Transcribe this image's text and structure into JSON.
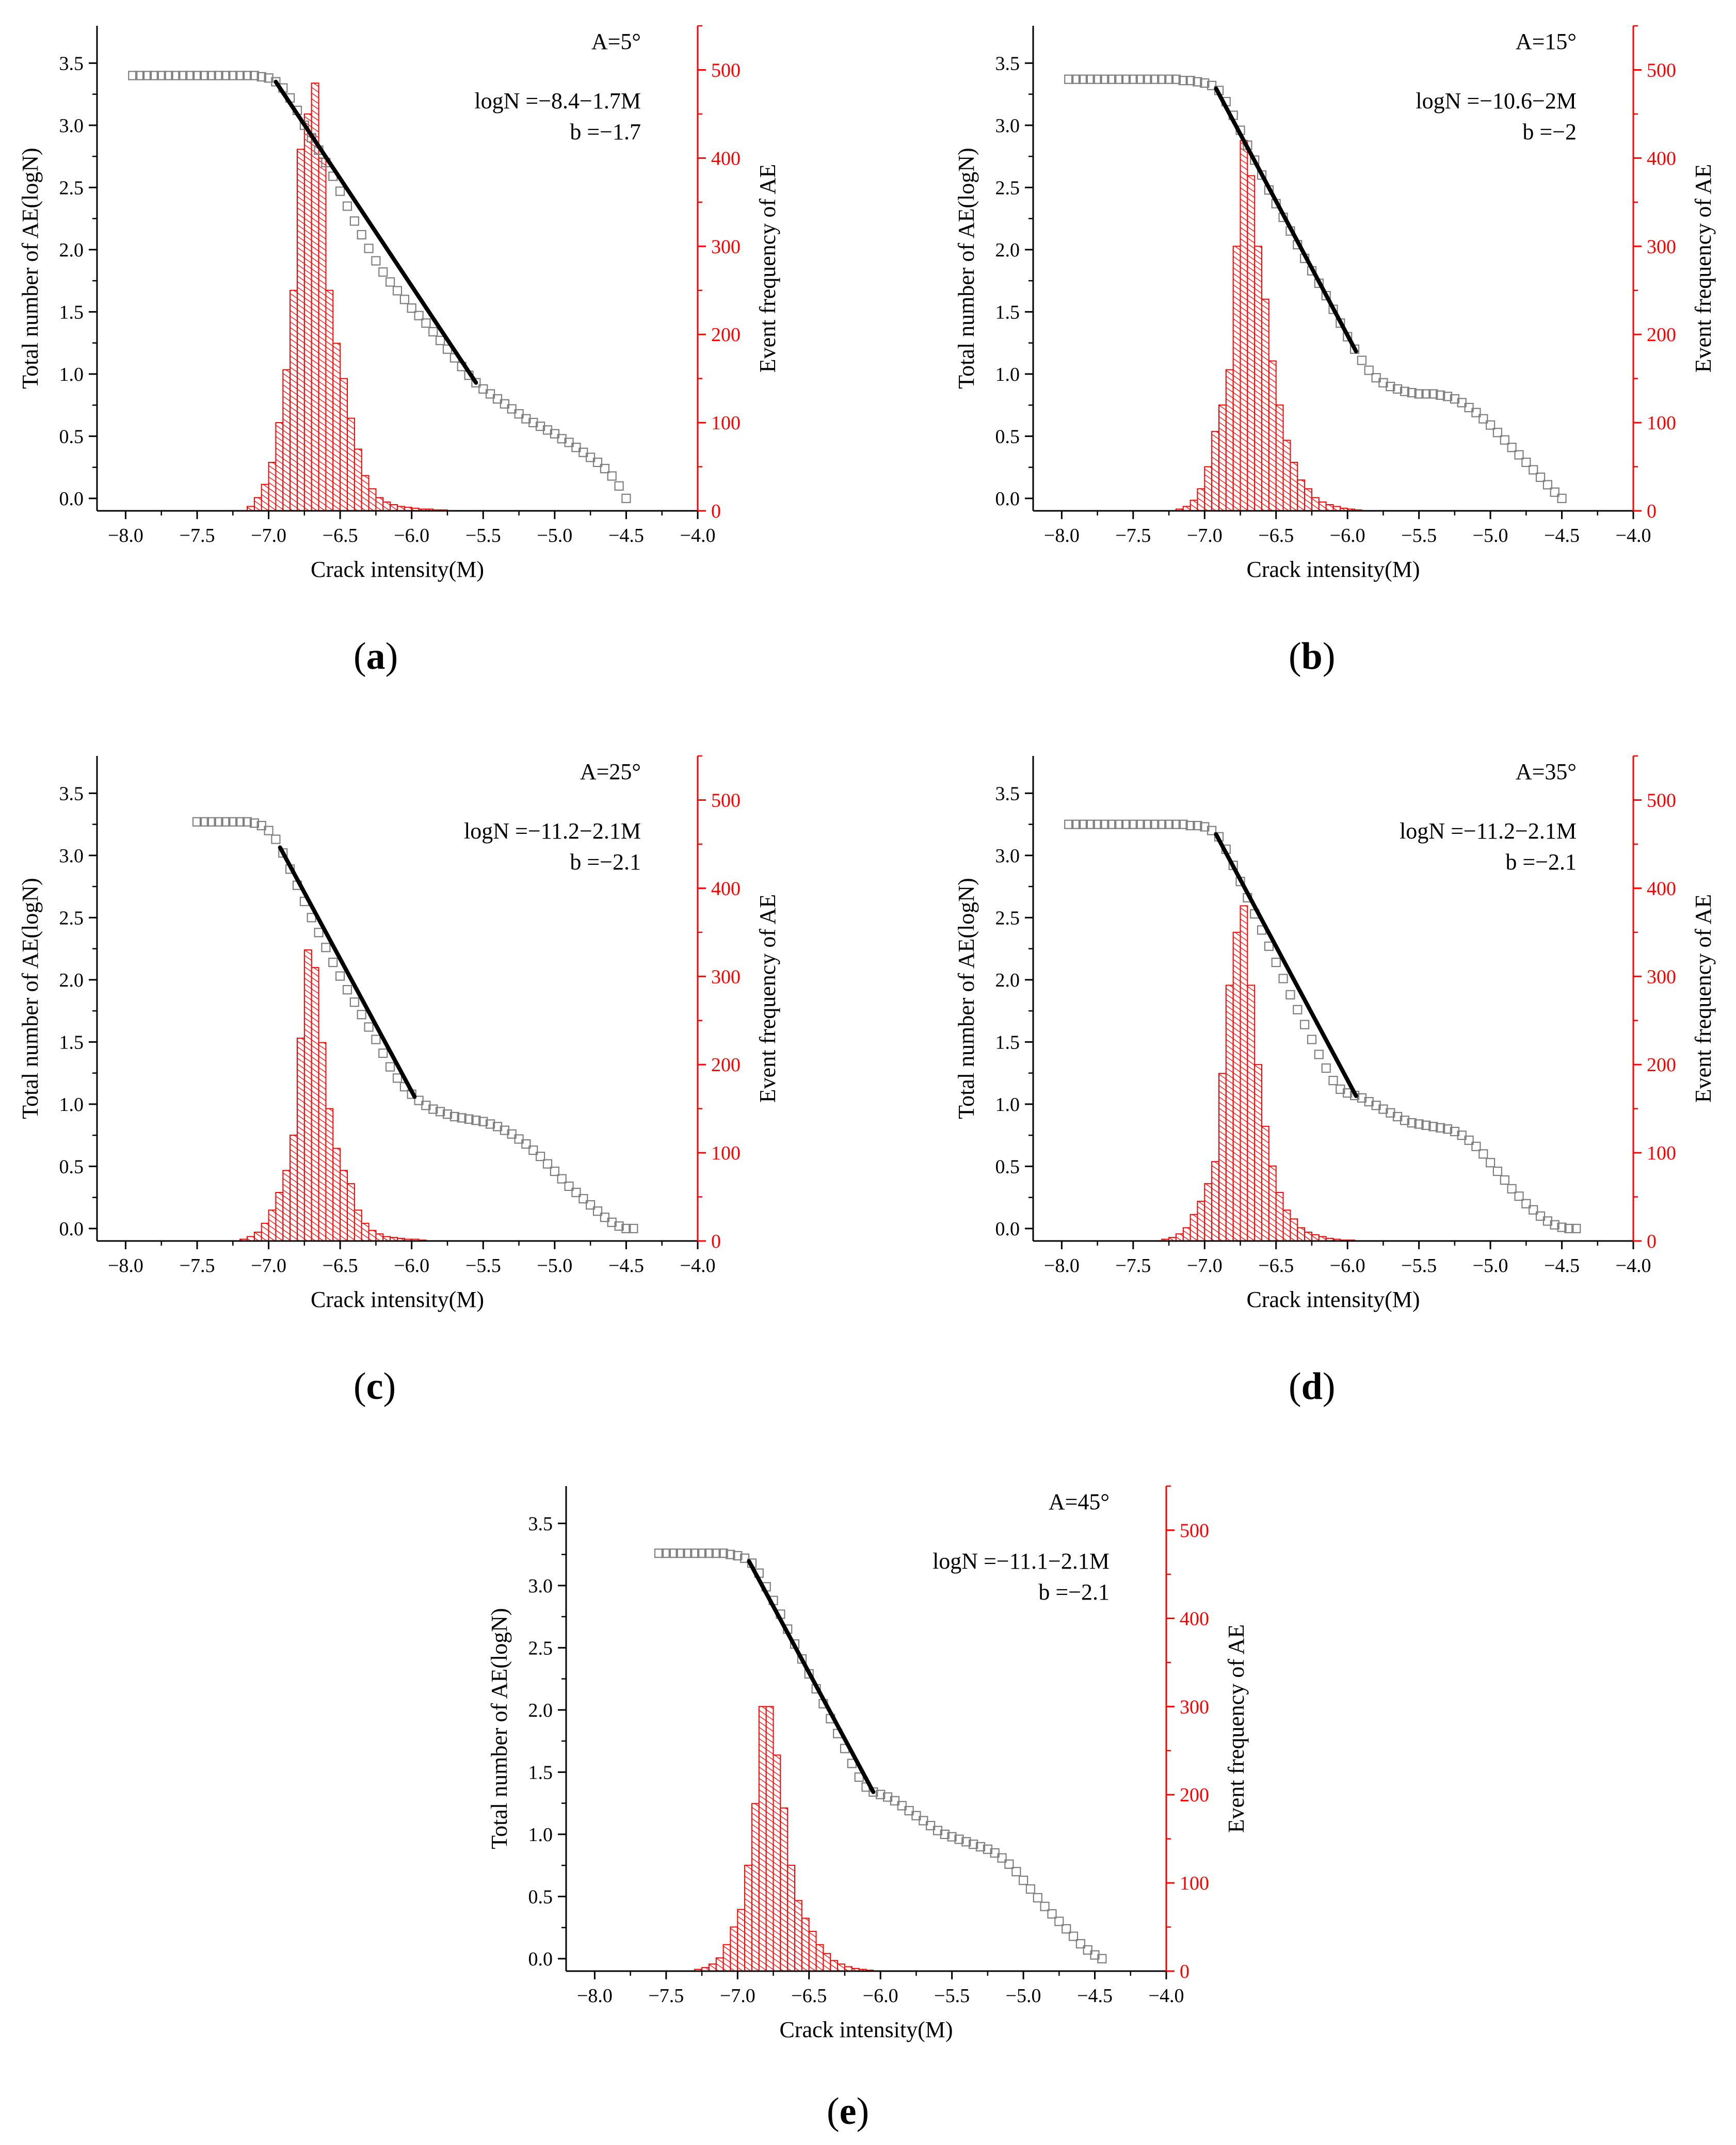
{
  "figure": {
    "panel_labels": [
      "a",
      "b",
      "c",
      "d",
      "e"
    ]
  },
  "colors": {
    "axis": "#000000",
    "right_axis": "#ff0000",
    "histogram": "#ff0000",
    "scatter": "#7f7f7f",
    "fit_line": "#000000"
  },
  "chart_data": [
    {
      "id": "a",
      "type": "combo-bar-scatter",
      "angle_label": "A=5°",
      "equation": "logN =−8.4−1.7M",
      "b_value": "b =−1.7",
      "xlabel": "Crack intensity(M)",
      "ylabel_left": "Total number of AE(logN)",
      "ylabel_right": "Event frequency of AE",
      "xlim": [
        -8.2,
        -4.0
      ],
      "ylim_left": [
        -0.1,
        3.8
      ],
      "ylim_right": [
        0,
        550
      ],
      "xticks": [
        "-8.0",
        "-7.5",
        "-7.0",
        "-6.5",
        "-6.0",
        "-5.5",
        "-5.0",
        "-4.5",
        "-4.0"
      ],
      "yticks_left": [
        "0.0",
        "0.5",
        "1.0",
        "1.5",
        "2.0",
        "2.5",
        "3.0",
        "3.5"
      ],
      "yticks_right": [
        "0",
        "100",
        "200",
        "300",
        "400",
        "500"
      ],
      "histogram": {
        "bin_width": 0.05,
        "bin_start": -7.15,
        "counts": [
          5,
          15,
          30,
          55,
          100,
          160,
          250,
          410,
          450,
          485,
          400,
          250,
          190,
          150,
          105,
          70,
          40,
          25,
          15,
          10,
          7,
          5,
          4,
          3,
          2,
          2,
          1,
          1
        ]
      },
      "scatter": {
        "x": [
          -7.95,
          -7.9,
          -7.85,
          -7.8,
          -7.75,
          -7.7,
          -7.65,
          -7.6,
          -7.55,
          -7.5,
          -7.45,
          -7.4,
          -7.35,
          -7.3,
          -7.25,
          -7.2,
          -7.15,
          -7.1,
          -7.05,
          -7.0,
          -6.95,
          -6.9,
          -6.85,
          -6.8,
          -6.75,
          -6.7,
          -6.65,
          -6.6,
          -6.55,
          -6.5,
          -6.45,
          -6.4,
          -6.35,
          -6.3,
          -6.25,
          -6.2,
          -6.15,
          -6.1,
          -6.05,
          -6.0,
          -5.95,
          -5.9,
          -5.85,
          -5.8,
          -5.75,
          -5.7,
          -5.65,
          -5.6,
          -5.55,
          -5.5,
          -5.45,
          -5.4,
          -5.35,
          -5.3,
          -5.25,
          -5.2,
          -5.15,
          -5.1,
          -5.05,
          -5.0,
          -4.95,
          -4.9,
          -4.85,
          -4.8,
          -4.75,
          -4.7,
          -4.65,
          -4.6,
          -4.55,
          -4.5
        ],
        "y": [
          3.4,
          3.4,
          3.4,
          3.4,
          3.4,
          3.4,
          3.4,
          3.4,
          3.4,
          3.4,
          3.4,
          3.4,
          3.4,
          3.4,
          3.4,
          3.4,
          3.4,
          3.4,
          3.39,
          3.38,
          3.35,
          3.3,
          3.22,
          3.12,
          3.0,
          2.9,
          2.8,
          2.7,
          2.59,
          2.47,
          2.35,
          2.23,
          2.12,
          2.01,
          1.91,
          1.82,
          1.74,
          1.67,
          1.6,
          1.53,
          1.47,
          1.41,
          1.34,
          1.27,
          1.2,
          1.13,
          1.06,
          0.99,
          0.93,
          0.88,
          0.84,
          0.8,
          0.76,
          0.72,
          0.68,
          0.64,
          0.61,
          0.58,
          0.55,
          0.52,
          0.48,
          0.45,
          0.41,
          0.37,
          0.33,
          0.29,
          0.24,
          0.18,
          0.1,
          0.0
        ]
      },
      "fit_line": {
        "x": [
          -6.95,
          -5.55
        ]
      }
    },
    {
      "id": "b",
      "type": "combo-bar-scatter",
      "angle_label": "A=15°",
      "equation": "logN =−10.6−2M",
      "b_value": "b =−2",
      "xlabel": "Crack intensity(M)",
      "ylabel_left": "Total number of AE(logN)",
      "ylabel_right": "Event frequency of AE",
      "xlim": [
        -8.2,
        -4.0
      ],
      "ylim_left": [
        -0.1,
        3.8
      ],
      "ylim_right": [
        0,
        550
      ],
      "xticks": [
        "-8.0",
        "-7.5",
        "-7.0",
        "-6.5",
        "-6.0",
        "-5.5",
        "-5.0",
        "-4.5",
        "-4.0"
      ],
      "yticks_left": [
        "0.0",
        "0.5",
        "1.0",
        "1.5",
        "2.0",
        "2.5",
        "3.0",
        "3.5"
      ],
      "yticks_right": [
        "0",
        "100",
        "200",
        "300",
        "400",
        "500"
      ],
      "histogram": {
        "bin_width": 0.05,
        "bin_start": -7.2,
        "counts": [
          2,
          5,
          12,
          25,
          50,
          90,
          120,
          160,
          300,
          420,
          380,
          300,
          240,
          170,
          120,
          80,
          55,
          35,
          25,
          15,
          10,
          7,
          5,
          3,
          2,
          1
        ]
      },
      "scatter": {
        "x": [
          -7.95,
          -7.9,
          -7.85,
          -7.8,
          -7.75,
          -7.7,
          -7.65,
          -7.6,
          -7.55,
          -7.5,
          -7.45,
          -7.4,
          -7.35,
          -7.3,
          -7.25,
          -7.2,
          -7.15,
          -7.1,
          -7.05,
          -7.0,
          -6.95,
          -6.9,
          -6.85,
          -6.8,
          -6.75,
          -6.7,
          -6.65,
          -6.6,
          -6.55,
          -6.5,
          -6.45,
          -6.4,
          -6.35,
          -6.3,
          -6.25,
          -6.2,
          -6.15,
          -6.1,
          -6.05,
          -6.0,
          -5.95,
          -5.9,
          -5.85,
          -5.8,
          -5.75,
          -5.7,
          -5.65,
          -5.6,
          -5.55,
          -5.5,
          -5.45,
          -5.4,
          -5.35,
          -5.3,
          -5.25,
          -5.2,
          -5.15,
          -5.1,
          -5.05,
          -5.0,
          -4.95,
          -4.9,
          -4.85,
          -4.8,
          -4.75,
          -4.7,
          -4.65,
          -4.6,
          -4.55,
          -4.5
        ],
        "y": [
          3.37,
          3.37,
          3.37,
          3.37,
          3.37,
          3.37,
          3.37,
          3.37,
          3.37,
          3.37,
          3.37,
          3.37,
          3.37,
          3.37,
          3.37,
          3.37,
          3.36,
          3.36,
          3.35,
          3.34,
          3.32,
          3.28,
          3.19,
          3.08,
          2.96,
          2.84,
          2.72,
          2.6,
          2.48,
          2.37,
          2.26,
          2.15,
          2.04,
          1.93,
          1.83,
          1.73,
          1.63,
          1.52,
          1.41,
          1.3,
          1.2,
          1.11,
          1.03,
          0.97,
          0.93,
          0.9,
          0.88,
          0.86,
          0.85,
          0.84,
          0.84,
          0.84,
          0.83,
          0.82,
          0.8,
          0.77,
          0.73,
          0.69,
          0.64,
          0.59,
          0.53,
          0.47,
          0.41,
          0.35,
          0.29,
          0.23,
          0.17,
          0.11,
          0.05,
          0.0
        ]
      },
      "fit_line": {
        "x": [
          -6.92,
          -5.94
        ]
      }
    },
    {
      "id": "c",
      "type": "combo-bar-scatter",
      "angle_label": "A=25°",
      "equation": "logN =−11.2−2.1M",
      "b_value": "b =−2.1",
      "xlabel": "Crack intensity(M)",
      "ylabel_left": "Total number of AE(logN)",
      "ylabel_right": "Event frequency of AE",
      "xlim": [
        -8.2,
        -4.0
      ],
      "ylim_left": [
        -0.1,
        3.8
      ],
      "ylim_right": [
        0,
        550
      ],
      "xticks": [
        "-8.0",
        "-7.5",
        "-7.0",
        "-6.5",
        "-6.0",
        "-5.5",
        "-5.0",
        "-4.5",
        "-4.0"
      ],
      "yticks_left": [
        "0.0",
        "0.5",
        "1.0",
        "1.5",
        "2.0",
        "2.5",
        "3.0",
        "3.5"
      ],
      "yticks_right": [
        "0",
        "100",
        "200",
        "300",
        "400",
        "500"
      ],
      "histogram": {
        "bin_width": 0.05,
        "bin_start": -7.2,
        "counts": [
          2,
          5,
          10,
          20,
          35,
          55,
          80,
          120,
          230,
          330,
          310,
          225,
          150,
          105,
          80,
          65,
          35,
          20,
          12,
          8,
          5,
          4,
          3,
          2,
          2,
          1
        ]
      },
      "scatter": {
        "x": [
          -7.5,
          -7.45,
          -7.4,
          -7.35,
          -7.3,
          -7.25,
          -7.2,
          -7.15,
          -7.1,
          -7.05,
          -7.0,
          -6.95,
          -6.9,
          -6.85,
          -6.8,
          -6.75,
          -6.7,
          -6.65,
          -6.6,
          -6.55,
          -6.5,
          -6.45,
          -6.4,
          -6.35,
          -6.3,
          -6.25,
          -6.2,
          -6.15,
          -6.1,
          -6.05,
          -6.0,
          -5.95,
          -5.9,
          -5.85,
          -5.8,
          -5.75,
          -5.7,
          -5.65,
          -5.6,
          -5.55,
          -5.5,
          -5.45,
          -5.4,
          -5.35,
          -5.3,
          -5.25,
          -5.2,
          -5.15,
          -5.1,
          -5.05,
          -5.0,
          -4.95,
          -4.9,
          -4.85,
          -4.8,
          -4.75,
          -4.7,
          -4.65,
          -4.6,
          -4.55,
          -4.5,
          -4.45
        ],
        "y": [
          3.27,
          3.27,
          3.27,
          3.27,
          3.27,
          3.27,
          3.27,
          3.27,
          3.26,
          3.24,
          3.2,
          3.13,
          3.02,
          2.89,
          2.76,
          2.63,
          2.5,
          2.38,
          2.26,
          2.14,
          2.03,
          1.92,
          1.82,
          1.72,
          1.62,
          1.52,
          1.41,
          1.3,
          1.21,
          1.14,
          1.08,
          1.03,
          0.99,
          0.96,
          0.94,
          0.92,
          0.9,
          0.89,
          0.88,
          0.87,
          0.86,
          0.84,
          0.82,
          0.79,
          0.76,
          0.72,
          0.68,
          0.63,
          0.58,
          0.52,
          0.46,
          0.4,
          0.34,
          0.29,
          0.24,
          0.19,
          0.14,
          0.09,
          0.05,
          0.02,
          0.0,
          0.0
        ]
      },
      "fit_line": {
        "x": [
          -6.92,
          -5.98
        ]
      }
    },
    {
      "id": "d",
      "type": "combo-bar-scatter",
      "angle_label": "A=35°",
      "equation": "logN =−11.2−2.1M",
      "b_value": "b =−2.1",
      "xlabel": "Crack intensity(M)",
      "ylabel_left": "Total number of AE(logN)",
      "ylabel_right": "Event frequency of AE",
      "xlim": [
        -8.2,
        -4.0
      ],
      "ylim_left": [
        -0.1,
        3.8
      ],
      "ylim_right": [
        0,
        550
      ],
      "xticks": [
        "-8.0",
        "-7.5",
        "-7.0",
        "-6.5",
        "-6.0",
        "-5.5",
        "-5.0",
        "-4.5",
        "-4.0"
      ],
      "yticks_left": [
        "0.0",
        "0.5",
        "1.0",
        "1.5",
        "2.0",
        "2.5",
        "3.0",
        "3.5"
      ],
      "yticks_right": [
        "0",
        "100",
        "200",
        "300",
        "400",
        "500"
      ],
      "histogram": {
        "bin_width": 0.05,
        "bin_start": -7.3,
        "counts": [
          2,
          4,
          8,
          15,
          30,
          45,
          65,
          90,
          190,
          290,
          350,
          380,
          290,
          200,
          130,
          85,
          55,
          35,
          25,
          15,
          10,
          7,
          5,
          3,
          2,
          1,
          1
        ]
      },
      "scatter": {
        "x": [
          -7.95,
          -7.9,
          -7.85,
          -7.8,
          -7.75,
          -7.7,
          -7.65,
          -7.6,
          -7.55,
          -7.5,
          -7.45,
          -7.4,
          -7.35,
          -7.3,
          -7.25,
          -7.2,
          -7.15,
          -7.1,
          -7.05,
          -7.0,
          -6.95,
          -6.9,
          -6.85,
          -6.8,
          -6.75,
          -6.7,
          -6.65,
          -6.6,
          -6.55,
          -6.5,
          -6.45,
          -6.4,
          -6.35,
          -6.3,
          -6.25,
          -6.2,
          -6.15,
          -6.1,
          -6.05,
          -6.0,
          -5.95,
          -5.9,
          -5.85,
          -5.8,
          -5.75,
          -5.7,
          -5.65,
          -5.6,
          -5.55,
          -5.5,
          -5.45,
          -5.4,
          -5.35,
          -5.3,
          -5.25,
          -5.2,
          -5.15,
          -5.1,
          -5.05,
          -5.0,
          -4.95,
          -4.9,
          -4.85,
          -4.8,
          -4.75,
          -4.7,
          -4.65,
          -4.6,
          -4.55,
          -4.5,
          -4.45,
          -4.4
        ],
        "y": [
          3.25,
          3.25,
          3.25,
          3.25,
          3.25,
          3.25,
          3.25,
          3.25,
          3.25,
          3.25,
          3.25,
          3.25,
          3.25,
          3.25,
          3.25,
          3.25,
          3.25,
          3.24,
          3.24,
          3.23,
          3.2,
          3.15,
          3.05,
          2.92,
          2.79,
          2.66,
          2.53,
          2.4,
          2.27,
          2.14,
          2.01,
          1.88,
          1.76,
          1.64,
          1.52,
          1.4,
          1.29,
          1.19,
          1.12,
          1.09,
          1.07,
          1.05,
          1.02,
          0.99,
          0.96,
          0.93,
          0.9,
          0.87,
          0.85,
          0.84,
          0.83,
          0.82,
          0.81,
          0.8,
          0.78,
          0.75,
          0.71,
          0.66,
          0.6,
          0.53,
          0.46,
          0.39,
          0.32,
          0.26,
          0.2,
          0.15,
          0.1,
          0.06,
          0.03,
          0.01,
          0.0,
          0.0
        ]
      },
      "fit_line": {
        "x": [
          -6.92,
          -5.94
        ]
      }
    },
    {
      "id": "e",
      "type": "combo-bar-scatter",
      "angle_label": "A=45°",
      "equation": "logN =−11.1−2.1M",
      "b_value": "b =−2.1",
      "xlabel": "Crack intensity(M)",
      "ylabel_left": "Total number of AE(logN)",
      "ylabel_right": "Event frequency of AE",
      "xlim": [
        -8.2,
        -4.0
      ],
      "ylim_left": [
        -0.1,
        3.8
      ],
      "ylim_right": [
        0,
        550
      ],
      "xticks": [
        "-8.0",
        "-7.5",
        "-7.0",
        "-6.5",
        "-6.0",
        "-5.5",
        "-5.0",
        "-4.5",
        "-4.0"
      ],
      "yticks_left": [
        "0.0",
        "0.5",
        "1.0",
        "1.5",
        "2.0",
        "2.5",
        "3.0",
        "3.5"
      ],
      "yticks_right": [
        "0",
        "100",
        "200",
        "300",
        "400",
        "500"
      ],
      "histogram": {
        "bin_width": 0.05,
        "bin_start": -7.3,
        "counts": [
          2,
          4,
          8,
          15,
          30,
          50,
          70,
          120,
          190,
          300,
          300,
          245,
          185,
          120,
          80,
          60,
          45,
          30,
          20,
          12,
          8,
          5,
          3,
          2,
          1
        ]
      },
      "scatter": {
        "x": [
          -7.55,
          -7.5,
          -7.45,
          -7.4,
          -7.35,
          -7.3,
          -7.25,
          -7.2,
          -7.15,
          -7.1,
          -7.05,
          -7.0,
          -6.95,
          -6.9,
          -6.85,
          -6.8,
          -6.75,
          -6.7,
          -6.65,
          -6.6,
          -6.55,
          -6.5,
          -6.45,
          -6.4,
          -6.35,
          -6.3,
          -6.25,
          -6.2,
          -6.15,
          -6.1,
          -6.05,
          -6.0,
          -5.95,
          -5.9,
          -5.85,
          -5.8,
          -5.75,
          -5.7,
          -5.65,
          -5.6,
          -5.55,
          -5.5,
          -5.45,
          -5.4,
          -5.35,
          -5.3,
          -5.25,
          -5.2,
          -5.15,
          -5.1,
          -5.05,
          -5.0,
          -4.95,
          -4.9,
          -4.85,
          -4.8,
          -4.75,
          -4.7,
          -4.65,
          -4.6,
          -4.55,
          -4.5,
          -4.45
        ],
        "y": [
          3.26,
          3.26,
          3.26,
          3.26,
          3.26,
          3.26,
          3.26,
          3.26,
          3.26,
          3.26,
          3.25,
          3.24,
          3.22,
          3.18,
          3.1,
          2.99,
          2.88,
          2.77,
          2.65,
          2.53,
          2.41,
          2.29,
          2.17,
          2.05,
          1.93,
          1.81,
          1.69,
          1.57,
          1.46,
          1.38,
          1.34,
          1.32,
          1.3,
          1.27,
          1.23,
          1.19,
          1.15,
          1.11,
          1.07,
          1.03,
          1.0,
          0.98,
          0.96,
          0.94,
          0.92,
          0.9,
          0.88,
          0.85,
          0.81,
          0.76,
          0.7,
          0.63,
          0.56,
          0.49,
          0.42,
          0.36,
          0.3,
          0.24,
          0.18,
          0.12,
          0.07,
          0.03,
          0.0
        ]
      },
      "fit_line": {
        "x": [
          -6.92,
          -6.05
        ]
      }
    }
  ]
}
